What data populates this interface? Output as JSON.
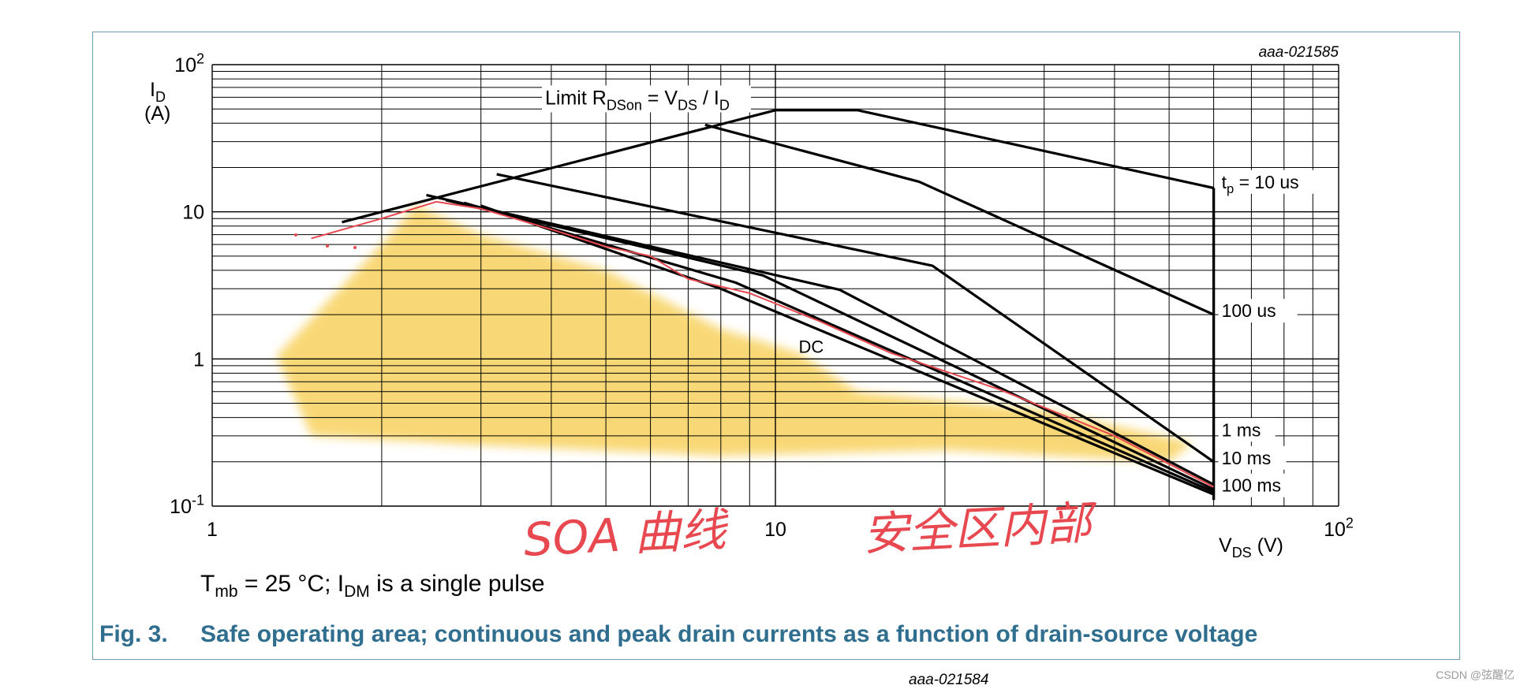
{
  "figure": {
    "id": "aaa-021585",
    "caption_number": "Fig. 3.",
    "caption_text": "Safe operating area; continuous and peak drain currents as a function of drain-source voltage",
    "condition_prefix": "T",
    "condition_sub1": "mb",
    "condition_mid": " = 25 °C; I",
    "condition_sub2": "DM",
    "condition_suffix": " is a single pulse",
    "next_figure_id": "aaa-021584"
  },
  "watermark": "CSDN @弦醒亿",
  "annotations": {
    "soa_note": "SOA 曲线",
    "safe_zone_note": "安全区内部"
  },
  "colors": {
    "frame": "#6f9bb5",
    "caption": "#2f6e8f",
    "curve": "#000000",
    "highlight": "#f7cf55",
    "annotation": "#e8484f"
  },
  "chart_data": {
    "type": "line",
    "x_scale": "log",
    "y_scale": "log",
    "xlim": [
      1,
      100
    ],
    "ylim": [
      0.1,
      100
    ],
    "grid": true,
    "xlabel": "V",
    "xlabel_sub": "DS",
    "xlabel_unit": " (V)",
    "ylabel": "I",
    "ylabel_sub": "D",
    "ylabel_unit": "(A)",
    "x_ticks": [
      {
        "value": 1,
        "base": "1",
        "exp": ""
      },
      {
        "value": 10,
        "base": "10",
        "exp": ""
      },
      {
        "value": 100,
        "base": "10",
        "exp": "2"
      }
    ],
    "y_ticks": [
      {
        "value": 100,
        "base": "10",
        "exp": "2"
      },
      {
        "value": 10,
        "base": "10",
        "exp": ""
      },
      {
        "value": 1,
        "base": "1",
        "exp": ""
      },
      {
        "value": 0.1,
        "base": "10",
        "exp": "-1"
      }
    ],
    "limit_label": {
      "l1": "Limit R",
      "s1": "DSon",
      "l2": " = V",
      "s2": "DS",
      "l3": " / I",
      "s3": "D",
      "x": 3.9,
      "y": 55
    },
    "series": [
      {
        "name": "t = 10 us",
        "label_main": "t",
        "label_sub": "p",
        "label_rest": " = 10 us",
        "label_value": 15,
        "points": [
          [
            1.7,
            8.5
          ],
          [
            10,
            49
          ],
          [
            14,
            49
          ],
          [
            60,
            14.5
          ]
        ]
      },
      {
        "name": "100 us",
        "label_main": "100 us",
        "label_sub": "",
        "label_rest": "",
        "label_value": 2,
        "points": [
          [
            7.5,
            39
          ],
          [
            18,
            16
          ],
          [
            60,
            2
          ]
        ]
      },
      {
        "name": "",
        "points": [
          [
            3.2,
            18
          ],
          [
            19,
            4.3
          ],
          [
            60,
            0.2
          ]
        ]
      },
      {
        "name": "",
        "points": [
          [
            2.4,
            13
          ],
          [
            13,
            2.95
          ],
          [
            60,
            0.14
          ]
        ]
      },
      {
        "name": "",
        "points": [
          [
            2.6,
            12
          ],
          [
            9.5,
            3.7
          ],
          [
            60,
            0.13
          ]
        ]
      },
      {
        "name": "",
        "points": [
          [
            2.8,
            11.5
          ],
          [
            8.5,
            3.3
          ],
          [
            60,
            0.125
          ]
        ]
      },
      {
        "name": "",
        "points": [
          [
            3.0,
            11
          ],
          [
            8,
            3.0
          ],
          [
            60,
            0.12
          ]
        ]
      },
      {
        "name": "1 ms",
        "label_main": "1 ms",
        "label_sub": "",
        "label_rest": "",
        "label_value": 0.31,
        "points": []
      },
      {
        "name": "10 ms",
        "label_main": "10 ms",
        "label_sub": "",
        "label_rest": "",
        "label_value": 0.2,
        "points": []
      },
      {
        "name": "100 ms",
        "label_main": "100 ms",
        "label_sub": "",
        "label_rest": "",
        "label_value": 0.13,
        "points": []
      },
      {
        "name": "DC",
        "label_main": "DC",
        "label_sub": "",
        "label_rest": "",
        "label_x": 11,
        "label_y": 1.1,
        "points": []
      }
    ],
    "vertical_limit": {
      "x": 60,
      "y": [
        0.11,
        14.5
      ]
    },
    "red_trace": [
      [
        1.5,
        6.6
      ],
      [
        2,
        9
      ],
      [
        2.5,
        11.7
      ],
      [
        3,
        10.5
      ],
      [
        4,
        7.6
      ],
      [
        5,
        5.8
      ],
      [
        6,
        5
      ],
      [
        7,
        3.5
      ],
      [
        9,
        2.8
      ],
      [
        12,
        1.8
      ],
      [
        16,
        1.1
      ],
      [
        25,
        0.62
      ],
      [
        40,
        0.3
      ],
      [
        60,
        0.135
      ]
    ]
  }
}
